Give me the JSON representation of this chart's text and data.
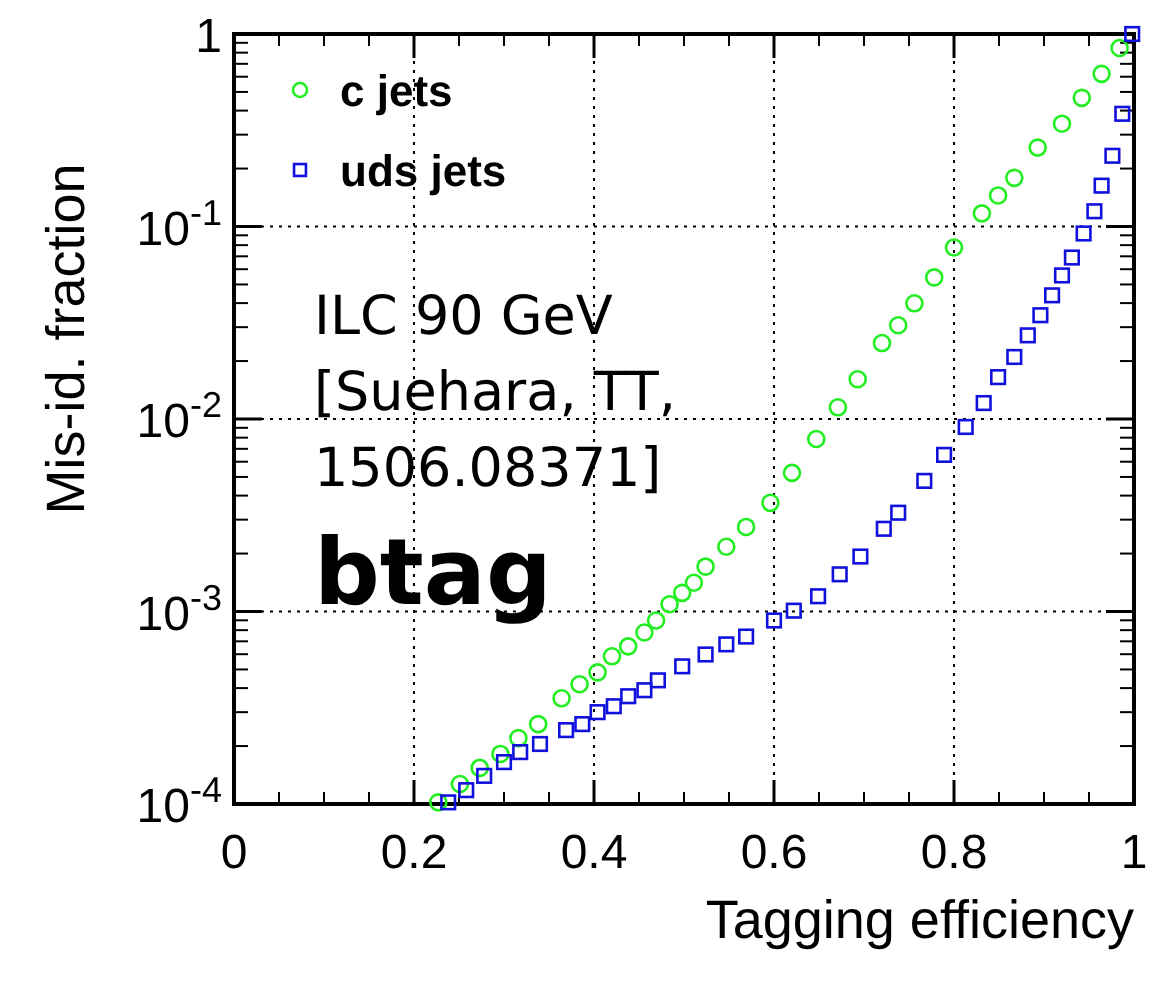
{
  "chart_data": {
    "type": "scatter",
    "xlabel": "Tagging efficiency",
    "ylabel": "Mis-id. fraction",
    "log": "y",
    "grid": true,
    "legend": "top left",
    "xlim": [
      0,
      1
    ],
    "xticks": [
      0,
      0.2,
      0.4,
      0.6,
      0.8,
      1
    ],
    "ylim": [
      0.0001,
      1
    ],
    "yticks": [
      {
        "value": 0.0001,
        "label": "10$^{-4}$"
      },
      {
        "value": 0.001,
        "label": "10$^{-3}$"
      },
      {
        "value": 0.01,
        "label": "10$^{-2}$"
      },
      {
        "value": 0.1,
        "label": "10$^{-1}$"
      },
      1
    ],
    "annotations": [
      "ILC 90 GeV\n[Suehara, TT,\n1506.08371]",
      "btag"
    ],
    "series": [
      {
        "name": "c jets",
        "color": "#22ee22",
        "marker": "circle",
        "x": [
          0.227,
          0.251,
          0.273,
          0.296,
          0.316,
          0.338,
          0.364,
          0.384,
          0.404,
          0.42,
          0.438,
          0.456,
          0.469,
          0.484,
          0.498,
          0.511,
          0.524,
          0.547,
          0.569,
          0.596,
          0.62,
          0.647,
          0.671,
          0.693,
          0.72,
          0.738,
          0.756,
          0.778,
          0.8,
          0.831,
          0.849,
          0.867,
          0.893,
          0.92,
          0.942,
          0.964,
          0.984
        ],
        "values": [
          0.000102,
          0.000127,
          0.000154,
          0.000182,
          0.00022,
          0.00026,
          0.000354,
          0.000419,
          0.000483,
          0.000585,
          0.000659,
          0.000778,
          0.000898,
          0.00109,
          0.00125,
          0.00141,
          0.00171,
          0.00217,
          0.00275,
          0.00367,
          0.00525,
          0.00787,
          0.0115,
          0.0161,
          0.0248,
          0.0307,
          0.0399,
          0.0544,
          0.0778,
          0.117,
          0.145,
          0.179,
          0.257,
          0.342,
          0.466,
          0.621,
          0.846
        ]
      },
      {
        "name": "uds jets",
        "color": "#1111dd",
        "marker": "square",
        "x": [
          0.238,
          0.258,
          0.278,
          0.3,
          0.318,
          0.34,
          0.369,
          0.387,
          0.404,
          0.422,
          0.438,
          0.456,
          0.471,
          0.498,
          0.524,
          0.547,
          0.569,
          0.6,
          0.622,
          0.649,
          0.673,
          0.696,
          0.722,
          0.738,
          0.767,
          0.789,
          0.813,
          0.833,
          0.849,
          0.867,
          0.882,
          0.896,
          0.909,
          0.92,
          0.931,
          0.944,
          0.956,
          0.964,
          0.976,
          0.987,
          0.998
        ],
        "values": [
          0.000102,
          0.000118,
          0.00014,
          0.000165,
          0.000186,
          0.000205,
          0.000242,
          0.00026,
          0.0003,
          0.000322,
          0.000363,
          0.00039,
          0.000439,
          0.000519,
          0.000598,
          0.000675,
          0.000741,
          0.000898,
          0.00101,
          0.0012,
          0.00156,
          0.00193,
          0.00269,
          0.00326,
          0.00477,
          0.00651,
          0.00909,
          0.0121,
          0.0165,
          0.021,
          0.0272,
          0.0346,
          0.0439,
          0.0557,
          0.069,
          0.092,
          0.12,
          0.163,
          0.233,
          0.385,
          1
        ]
      }
    ]
  }
}
